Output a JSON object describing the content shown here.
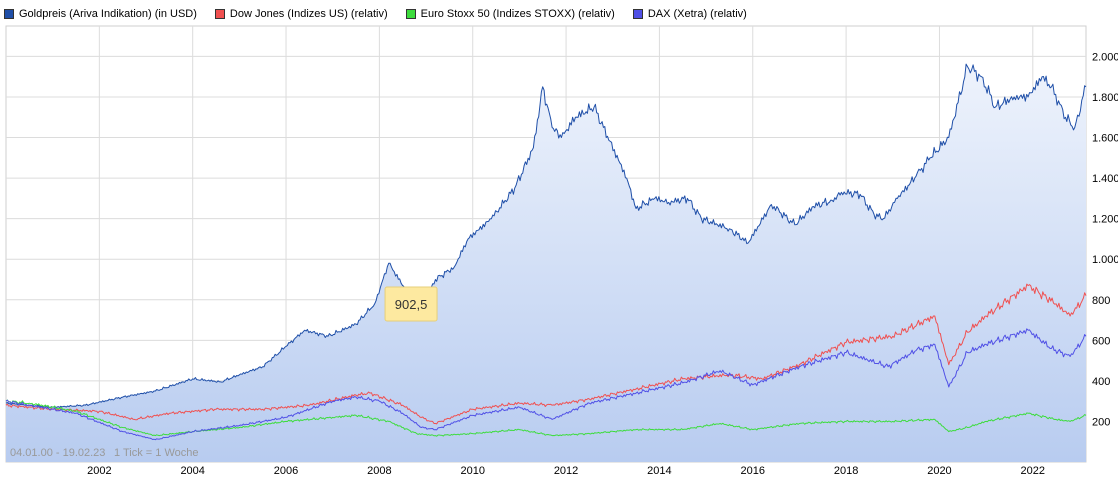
{
  "chart_data": {
    "type": "line",
    "title": "",
    "legend_position": "top-left",
    "series": [
      {
        "name": "Goldpreis (Ariva Indikation) (in USD)",
        "color": "#1f4fa8",
        "area": true,
        "x": [
          2000.0,
          2001.0,
          2001.7,
          2002.5,
          2003.2,
          2004.0,
          2004.6,
          2005.0,
          2005.5,
          2006.0,
          2006.4,
          2006.9,
          2007.5,
          2007.9,
          2008.2,
          2008.7,
          2008.85,
          2009.2,
          2009.6,
          2009.9,
          2010.4,
          2010.9,
          2011.3,
          2011.5,
          2011.7,
          2011.9,
          2012.2,
          2012.6,
          2012.8,
          2013.3,
          2013.5,
          2013.9,
          2014.2,
          2014.6,
          2014.9,
          2015.5,
          2015.9,
          2016.4,
          2016.9,
          2017.3,
          2017.7,
          2017.9,
          2018.3,
          2018.6,
          2018.8,
          2019.1,
          2019.5,
          2019.8,
          2020.2,
          2020.6,
          2020.9,
          2021.2,
          2021.6,
          2021.9,
          2022.2,
          2022.4,
          2022.7,
          2022.9,
          2023.14
        ],
        "values": [
          290,
          270,
          280,
          320,
          350,
          410,
          395,
          430,
          470,
          570,
          650,
          620,
          680,
          780,
          980,
          800,
          720,
          900,
          960,
          1100,
          1200,
          1350,
          1550,
          1850,
          1650,
          1600,
          1700,
          1750,
          1650,
          1400,
          1250,
          1300,
          1280,
          1300,
          1200,
          1150,
          1080,
          1270,
          1170,
          1260,
          1290,
          1330,
          1320,
          1220,
          1200,
          1300,
          1410,
          1500,
          1600,
          1950,
          1900,
          1750,
          1800,
          1800,
          1900,
          1850,
          1700,
          1650,
          1850
        ]
      },
      {
        "name": "Dow Jones (Indizes US) (relativ)",
        "color": "#f05050",
        "area": false,
        "x": [
          2000.0,
          2001.0,
          2002.0,
          2002.75,
          2003.5,
          2004.5,
          2005.5,
          2006.5,
          2007.5,
          2007.8,
          2008.5,
          2008.9,
          2009.2,
          2010.0,
          2011.0,
          2011.7,
          2012.5,
          2013.5,
          2014.5,
          2015.5,
          2016.2,
          2017.0,
          2018.0,
          2019.0,
          2019.9,
          2020.2,
          2020.6,
          2021.0,
          2021.9,
          2022.5,
          2022.8,
          2023.14
        ],
        "values": [
          280,
          260,
          250,
          210,
          240,
          260,
          260,
          280,
          330,
          340,
          280,
          220,
          190,
          260,
          290,
          280,
          310,
          360,
          410,
          430,
          410,
          480,
          590,
          620,
          720,
          480,
          640,
          720,
          870,
          780,
          720,
          820
        ]
      },
      {
        "name": "Euro Stoxx 50 (Indizes STOXX) (relativ)",
        "color": "#3ddc3d",
        "area": false,
        "x": [
          2000.0,
          2000.5,
          2001.5,
          2002.5,
          2003.2,
          2004.0,
          2005.0,
          2006.0,
          2007.0,
          2007.5,
          2008.2,
          2008.8,
          2009.2,
          2010.0,
          2011.0,
          2011.7,
          2012.5,
          2013.5,
          2014.5,
          2015.3,
          2016.0,
          2017.0,
          2018.0,
          2019.0,
          2019.9,
          2020.2,
          2020.6,
          2021.0,
          2021.9,
          2022.5,
          2022.8,
          2023.14
        ],
        "values": [
          300,
          290,
          250,
          170,
          130,
          150,
          170,
          200,
          220,
          230,
          200,
          140,
          130,
          140,
          160,
          130,
          140,
          160,
          160,
          190,
          160,
          190,
          200,
          200,
          210,
          150,
          170,
          200,
          240,
          210,
          200,
          230
        ]
      },
      {
        "name": "DAX (Xetra) (relativ)",
        "color": "#5050e6",
        "area": false,
        "x": [
          2000.0,
          2000.5,
          2001.5,
          2002.5,
          2003.2,
          2004.0,
          2005.0,
          2006.0,
          2007.0,
          2007.5,
          2008.0,
          2008.5,
          2008.9,
          2009.2,
          2010.0,
          2011.0,
          2011.7,
          2012.5,
          2013.5,
          2014.5,
          2015.3,
          2016.0,
          2017.0,
          2018.0,
          2018.9,
          2019.5,
          2019.9,
          2020.2,
          2020.6,
          2021.0,
          2021.9,
          2022.4,
          2022.8,
          2023.14
        ],
        "values": [
          300,
          280,
          240,
          150,
          110,
          150,
          180,
          220,
          300,
          320,
          300,
          240,
          170,
          160,
          230,
          270,
          210,
          290,
          340,
          390,
          450,
          380,
          470,
          540,
          470,
          550,
          580,
          370,
          540,
          580,
          650,
          560,
          520,
          620
        ]
      }
    ],
    "xlim": [
      2000.0,
      2023.14
    ],
    "ylim": [
      0,
      2150
    ],
    "xticks": [
      2002,
      2004,
      2006,
      2008,
      2010,
      2012,
      2014,
      2016,
      2018,
      2020,
      2022
    ],
    "xtick_labels": [
      "2002",
      "2004",
      "2006",
      "2008",
      "2010",
      "2012",
      "2014",
      "2016",
      "2018",
      "2020",
      "2022"
    ],
    "yticks": [
      200,
      400,
      600,
      800,
      1000,
      1200,
      1400,
      1600,
      1800,
      2000
    ],
    "ytick_labels": [
      "200",
      "400",
      "600",
      "800",
      "1.000",
      "1.200",
      "1.400",
      "1.600",
      "1.800",
      "2.000"
    ],
    "grid": true,
    "annotations": [
      {
        "text": "04.01.00 - 19.02.23",
        "position": "bottom-left"
      },
      {
        "text": "1 Tick = 1 Woche",
        "position": "bottom-left"
      },
      {
        "text": "902,5",
        "type": "tooltip",
        "x": 2009.3,
        "y": 902.5
      }
    ]
  }
}
